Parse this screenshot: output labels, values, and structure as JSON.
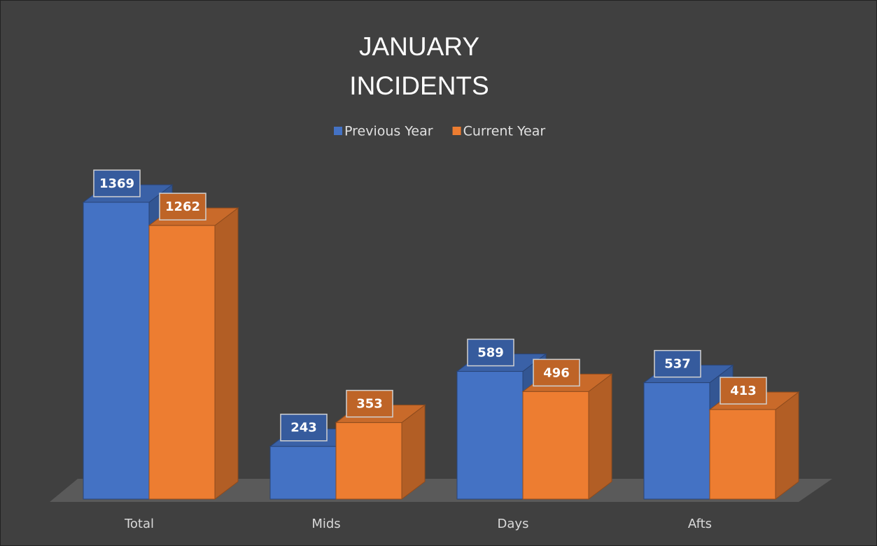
{
  "chart_data": {
    "type": "bar3d",
    "title": "JANUARY INCIDENTS",
    "categories": [
      "Total",
      "Mids",
      "Days",
      "Afts"
    ],
    "series": [
      {
        "name": "Previous Year",
        "color": "#4472c4",
        "values": [
          1369,
          243,
          589,
          537
        ]
      },
      {
        "name": "Current Year",
        "color": "#ed7d31",
        "values": [
          1262,
          353,
          496,
          413
        ]
      }
    ],
    "legend": "top"
  }
}
